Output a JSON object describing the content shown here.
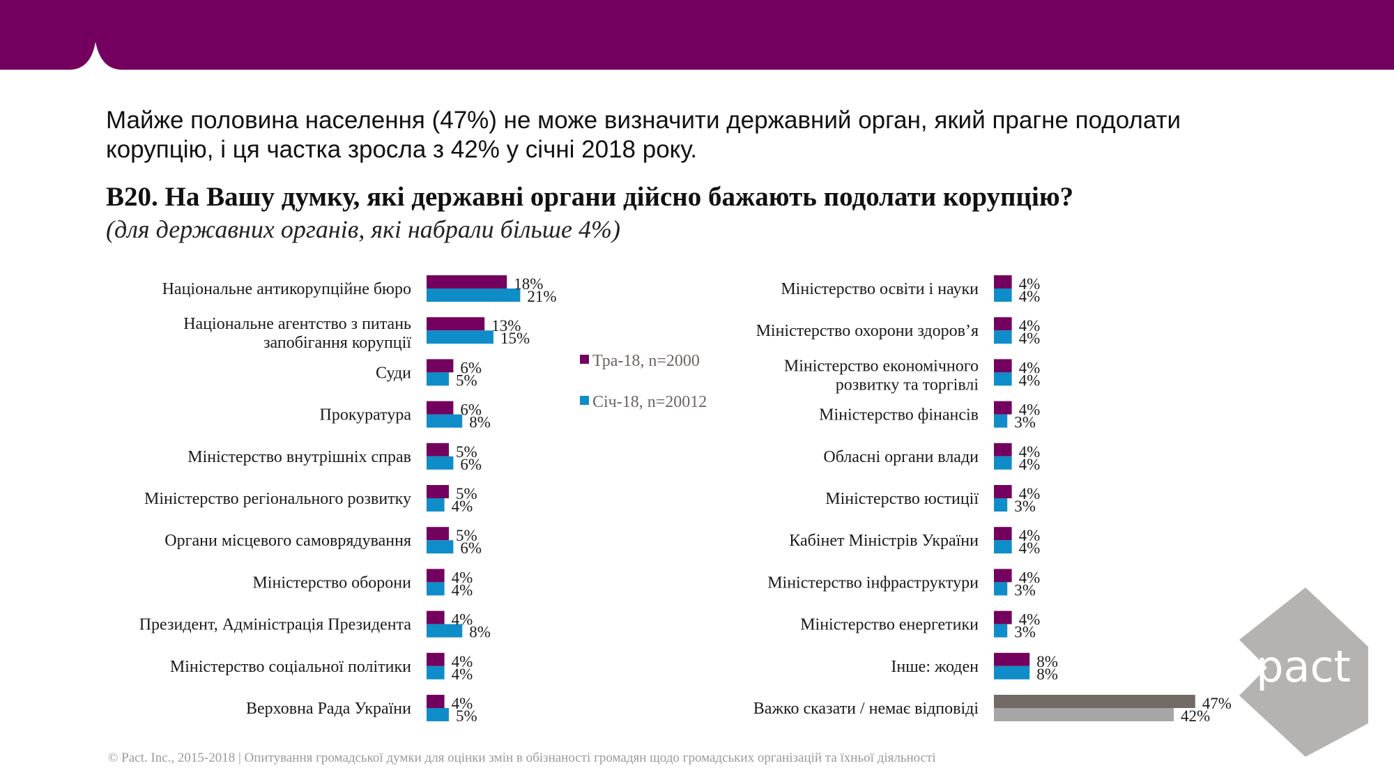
{
  "headline": "Майже половина населення (47%) не може визначити державний орган, який прагне подолати корупцію, і ця частка зросла з 42% у січні 2018 року.",
  "question": "B20. На Вашу думку, які державні органи дійсно бажають подолати корупцію?",
  "subquestion": "(для державних органів, які набрали більше 4%)",
  "footer": "© Pact. Inc., 2015-2018 | Опитування громадської думки для оцінки змін в обізнаності громадян щодо громадських організацій та їхньої діяльності",
  "logo": {
    "text": "pact",
    "color": "#b5b3b1"
  },
  "colors": {
    "brand": "#73005e",
    "may": "#73005e",
    "jan": "#0f8dc8",
    "may_grey": "#736a65",
    "jan_grey": "#a6a6a6"
  },
  "chart_data": {
    "type": "bar",
    "orientation": "horizontal",
    "title": "B20. На Вашу думку, які державні органи дійсно бажають подолати корупцію?",
    "unit": "%",
    "legend": [
      "Тра-18, n=2000",
      "Січ-18, n=20012"
    ],
    "legend_position": "center",
    "series": [
      {
        "name": "Тра-18, n=2000",
        "color": "#73005e"
      },
      {
        "name": "Січ-18, n=20012",
        "color": "#0f8dc8"
      }
    ],
    "panels": [
      {
        "categories": [
          {
            "label": [
              "Національне антикорупційне бюро"
            ],
            "may": 18,
            "jan": 21
          },
          {
            "label": [
              "Національне агентство з питань",
              "запобігання корупції"
            ],
            "may": 13,
            "jan": 15
          },
          {
            "label": [
              "Суди"
            ],
            "may": 6,
            "jan": 5
          },
          {
            "label": [
              "Прокуратура"
            ],
            "may": 6,
            "jan": 8
          },
          {
            "label": [
              "Міністерство внутрішніх справ"
            ],
            "may": 5,
            "jan": 6
          },
          {
            "label": [
              "Міністерство регіонального розвитку"
            ],
            "may": 5,
            "jan": 4
          },
          {
            "label": [
              "Органи місцевого самоврядування"
            ],
            "may": 5,
            "jan": 6
          },
          {
            "label": [
              "Міністерство оборони"
            ],
            "may": 4,
            "jan": 4
          },
          {
            "label": [
              "Президент, Адміністрація Президента"
            ],
            "may": 4,
            "jan": 8
          },
          {
            "label": [
              "Міністерство соціальної політики"
            ],
            "may": 4,
            "jan": 4
          },
          {
            "label": [
              "Верховна Рада України"
            ],
            "may": 4,
            "jan": 5
          }
        ]
      },
      {
        "categories": [
          {
            "label": [
              "Міністерство освіти і науки"
            ],
            "may": 4,
            "jan": 4
          },
          {
            "label": [
              "Міністерство охорони здоров’я"
            ],
            "may": 4,
            "jan": 4
          },
          {
            "label": [
              "Міністерство економічного",
              "розвитку та торгівлі"
            ],
            "may": 4,
            "jan": 4
          },
          {
            "label": [
              "Міністерство фінансів"
            ],
            "may": 4,
            "jan": 3
          },
          {
            "label": [
              "Обласні органи влади"
            ],
            "may": 4,
            "jan": 4
          },
          {
            "label": [
              "Міністерство юстиції"
            ],
            "may": 4,
            "jan": 3
          },
          {
            "label": [
              "Кабінет Міністрів України"
            ],
            "may": 4,
            "jan": 4
          },
          {
            "label": [
              "Міністерство інфраструктури"
            ],
            "may": 4,
            "jan": 3
          },
          {
            "label": [
              "Міністерство енергетики"
            ],
            "may": 4,
            "jan": 3
          },
          {
            "label": [
              "Інше: жоден"
            ],
            "may": 8,
            "jan": 8
          },
          {
            "label": [
              "Важко сказати / немає відповіді"
            ],
            "may": 47,
            "jan": 42,
            "grey": true
          }
        ]
      }
    ]
  }
}
